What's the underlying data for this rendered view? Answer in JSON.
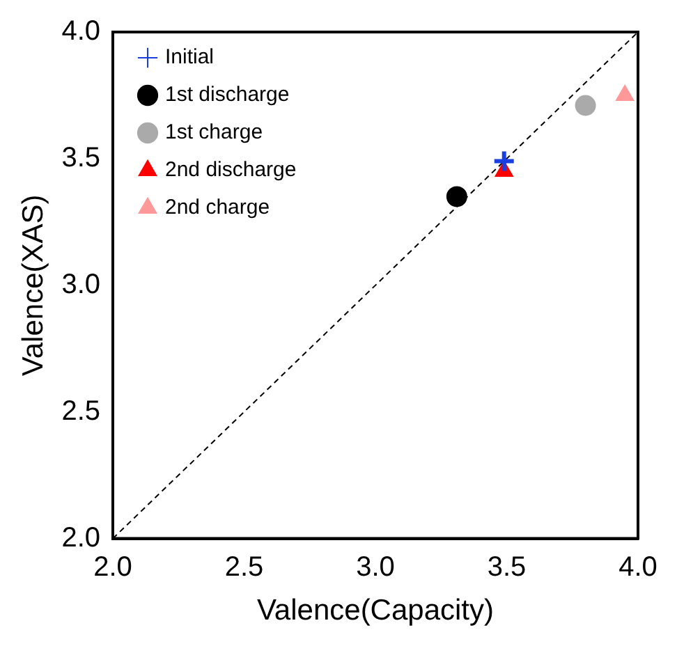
{
  "chart_data": {
    "type": "scatter",
    "xlabel": "Valence(Capacity)",
    "ylabel": "Valence(XAS)",
    "xlim": [
      2.0,
      4.0
    ],
    "ylim": [
      2.0,
      4.0
    ],
    "xticks": [
      {
        "value": 2,
        "label": "2.0"
      },
      {
        "value": 2.5,
        "label": "2.5"
      },
      {
        "value": 3,
        "label": "3.0"
      },
      {
        "value": 3.5,
        "label": "3.5"
      },
      {
        "value": 4,
        "label": "4.0"
      }
    ],
    "yticks": [
      {
        "value": 2,
        "label": "2.0"
      },
      {
        "value": 2.5,
        "label": "2.5"
      },
      {
        "value": 3,
        "label": "3.0"
      },
      {
        "value": 3.5,
        "label": "3.5"
      },
      {
        "value": 4,
        "label": "4.0"
      }
    ],
    "grid": false,
    "legend": "top left",
    "series": [
      {
        "name": "Initial",
        "color": "#1a3fe0",
        "marker": "cross",
        "x": [
          3.49
        ],
        "values": [
          3.49
        ]
      },
      {
        "name": "1st discharge",
        "color": "#000000",
        "marker": "circle",
        "x": [
          3.31
        ],
        "values": [
          3.35
        ]
      },
      {
        "name": "1st charge",
        "color": "#aaaaaa",
        "marker": "circle",
        "x": [
          3.8
        ],
        "values": [
          3.71
        ]
      },
      {
        "name": "2nd discharge",
        "color": "#ff0000",
        "marker": "triangle",
        "x": [
          3.49
        ],
        "values": [
          3.45
        ]
      },
      {
        "name": "2nd charge",
        "color": "#ff9999",
        "marker": "triangle",
        "x": [
          3.95
        ],
        "values": [
          3.75
        ]
      },
      {
        "type": "line",
        "color": "#000000",
        "line_style": "dashed",
        "marker": "none",
        "x": [
          2.0,
          4.0
        ],
        "values": [
          2.0,
          4.0
        ]
      }
    ]
  }
}
